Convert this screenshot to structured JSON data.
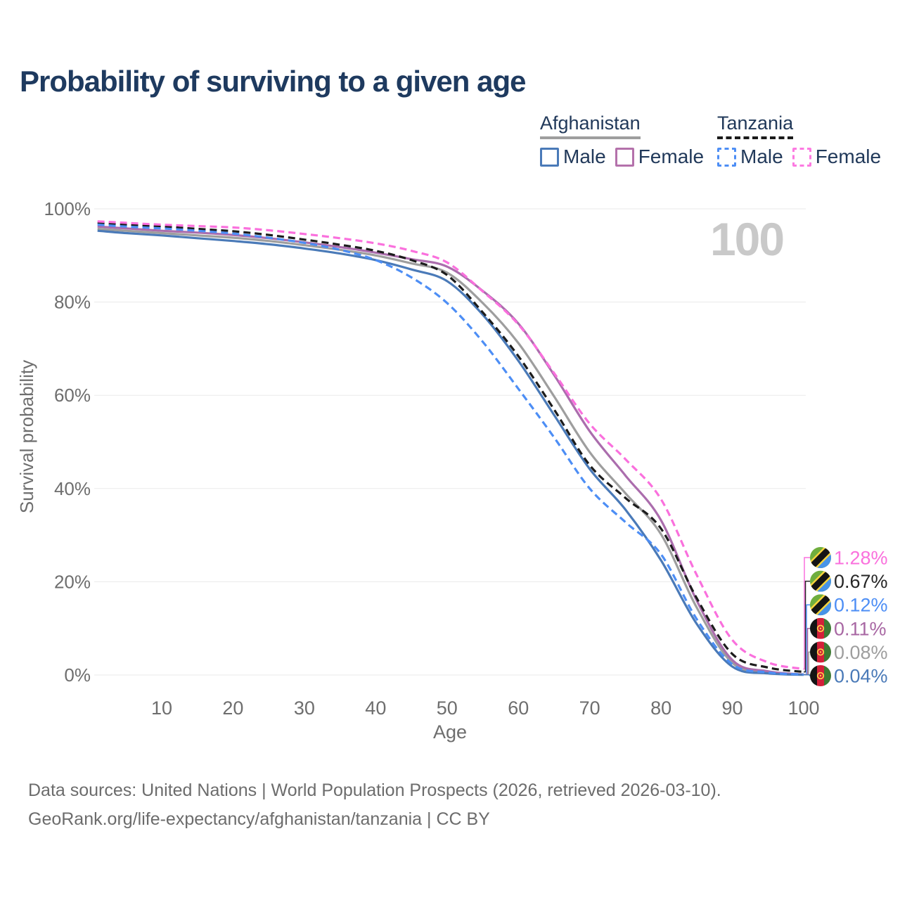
{
  "header": {
    "title": "Probability of surviving to a given age"
  },
  "watermark": "100",
  "legend": {
    "groups": [
      {
        "label": "Afghanistan",
        "style": "solid",
        "underline_color": "#9e9e9e",
        "items": [
          {
            "label": "Male",
            "color": "#4a7ab8",
            "dashed": false
          },
          {
            "label": "Female",
            "color": "#b471ab",
            "dashed": false
          }
        ]
      },
      {
        "label": "Tanzania",
        "style": "dashed",
        "underline_color": "#1a1a1a",
        "items": [
          {
            "label": "Male",
            "color": "#4d8ef5",
            "dashed": true
          },
          {
            "label": "Female",
            "color": "#fc7ae1",
            "dashed": true
          }
        ]
      }
    ]
  },
  "chart_data": {
    "type": "line",
    "title": "Probability of surviving to a given age",
    "xlabel": "Age",
    "ylabel": "Survival probability",
    "xlim": [
      1,
      100
    ],
    "ylim": [
      0,
      100
    ],
    "grid": "horizontal-only",
    "legend_position": "top-right",
    "age_indicator": "100",
    "x_ticks": [
      10,
      20,
      30,
      40,
      50,
      60,
      70,
      80,
      90,
      100
    ],
    "y_ticks": [
      100,
      80,
      60,
      40,
      20,
      0
    ],
    "y_tick_labels": [
      "100%",
      "80%",
      "60%",
      "40%",
      "20%",
      "0%"
    ],
    "x": [
      1,
      5,
      10,
      15,
      20,
      25,
      30,
      35,
      40,
      45,
      50,
      55,
      60,
      65,
      70,
      75,
      80,
      85,
      90,
      95,
      100
    ],
    "series": [
      {
        "name": "Afghanistan Male",
        "country": "Afghanistan",
        "sex": "Male",
        "color": "#4a7ab8",
        "dashed": false,
        "end_value_label": "0.04%",
        "values": [
          95.3,
          94.8,
          94.3,
          93.7,
          93.1,
          92.4,
          91.5,
          90.4,
          89.0,
          87.0,
          84.5,
          77.3,
          67.4,
          55.8,
          44.2,
          35.5,
          24.6,
          11.0,
          1.8,
          0.35,
          0.04
        ]
      },
      {
        "name": "Afghanistan Female",
        "country": "Afghanistan",
        "sex": "Female",
        "color": "#ab6dad",
        "dashed": false,
        "end_value_label": "0.11%",
        "values": [
          96.2,
          95.8,
          95.3,
          94.9,
          94.4,
          93.7,
          92.8,
          91.8,
          90.6,
          89.2,
          87.6,
          82.4,
          75.4,
          64.4,
          52.3,
          42.8,
          33.2,
          16.0,
          3.2,
          0.8,
          0.11
        ]
      },
      {
        "name": "Afghanistan Both sexes",
        "country": "Afghanistan",
        "sex": "Both",
        "color": "#9e9e9e",
        "dashed": false,
        "end_value_label": "0.08%",
        "values": [
          95.7,
          95.3,
          94.8,
          94.3,
          93.8,
          93.1,
          92.2,
          91.2,
          90.0,
          88.3,
          86.3,
          79.8,
          71.2,
          59.8,
          47.8,
          39.0,
          30.2,
          14.5,
          2.6,
          0.6,
          0.08
        ]
      },
      {
        "name": "Tanzania Male",
        "country": "Tanzania",
        "sex": "Male",
        "color": "#4d8ef5",
        "dashed": true,
        "end_value_label": "0.12%",
        "values": [
          96.6,
          96.2,
          95.8,
          95.3,
          94.7,
          93.8,
          92.7,
          91.2,
          89.0,
          85.3,
          79.8,
          71.5,
          61.4,
          51.0,
          40.0,
          32.8,
          25.9,
          12.0,
          2.3,
          0.55,
          0.12
        ]
      },
      {
        "name": "Tanzania Female",
        "country": "Tanzania",
        "sex": "Female",
        "color": "#fa70dd",
        "dashed": true,
        "end_value_label": "1.28%",
        "values": [
          97.3,
          97.0,
          96.6,
          96.3,
          96.0,
          95.4,
          94.6,
          93.7,
          92.6,
          91.0,
          88.5,
          82.3,
          75.2,
          64.8,
          53.9,
          46.3,
          37.7,
          21.5,
          7.5,
          2.7,
          1.28
        ]
      },
      {
        "name": "Tanzania Both sexes",
        "country": "Tanzania",
        "sex": "Both",
        "color": "#1c1c1c",
        "dashed": true,
        "end_value_label": "0.67%",
        "values": [
          97.0,
          96.6,
          96.2,
          95.7,
          95.2,
          94.4,
          93.4,
          92.3,
          91.0,
          89.0,
          85.8,
          77.8,
          68.4,
          57.0,
          45.0,
          38.0,
          31.4,
          16.5,
          4.5,
          1.6,
          0.67
        ]
      }
    ],
    "draw_order": [
      2,
      1,
      0,
      5,
      3,
      4
    ],
    "end_labels": [
      {
        "label": "1.28%",
        "flag": "tanzania",
        "color": "#fa70dd",
        "series": 4
      },
      {
        "label": "0.67%",
        "flag": "tanzania",
        "color": "#262626",
        "series": 5
      },
      {
        "label": "0.12%",
        "flag": "tanzania",
        "color": "#4d8ef5",
        "series": 3
      },
      {
        "label": "0.11%",
        "flag": "afghanistan",
        "color": "#a867a3",
        "series": 1
      },
      {
        "label": "0.08%",
        "flag": "afghanistan",
        "color": "#9e9e9e",
        "series": 2
      },
      {
        "label": "0.04%",
        "flag": "afghanistan",
        "color": "#4a7ab8",
        "series": 0
      }
    ]
  },
  "footer": {
    "line1": "Data sources: United Nations | World Population Prospects (2026, retrieved 2026-03-10).",
    "line2": "GeoRank.org/life-expectancy/afghanistan/tanzania | CC BY"
  }
}
